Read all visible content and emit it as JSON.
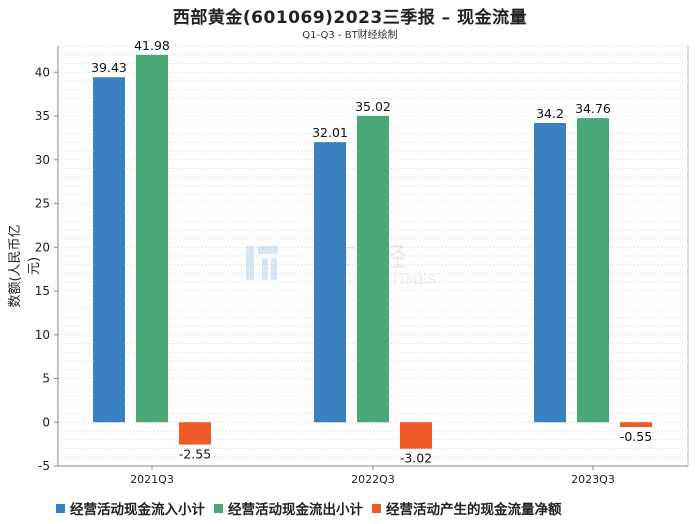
{
  "title": "西部黄金(601069)2023三季报 – 现金流量",
  "subtitle": "Q1-Q3 - BT财经绘制",
  "watermark": {
    "main": "BT财经",
    "sub": "BUSINESSTIMES"
  },
  "chart_data": {
    "type": "bar",
    "title": "西部黄金(601069)2023三季报 – 现金流量",
    "subtitle": "Q1-Q3 - BT财经绘制",
    "xlabel": "",
    "ylabel": "数额(人民币亿元)",
    "categories": [
      "2021Q3",
      "2022Q3",
      "2023Q3"
    ],
    "ylim": [
      -5,
      43
    ],
    "yticks": [
      -5,
      0,
      5,
      10,
      15,
      20,
      25,
      30,
      35,
      40
    ],
    "grid": true,
    "legend_position": "bottom",
    "series": [
      {
        "name": "经营活动现金流入小计",
        "color": "#3a81c3",
        "values": [
          39.43,
          32.01,
          34.2
        ]
      },
      {
        "name": "经营活动现金流出小计",
        "color": "#4aa878",
        "values": [
          41.98,
          35.02,
          34.76
        ]
      },
      {
        "name": "经营活动产生的现金流量净额",
        "color": "#ef5a28",
        "values": [
          -2.55,
          -3.02,
          -0.55
        ]
      }
    ]
  }
}
